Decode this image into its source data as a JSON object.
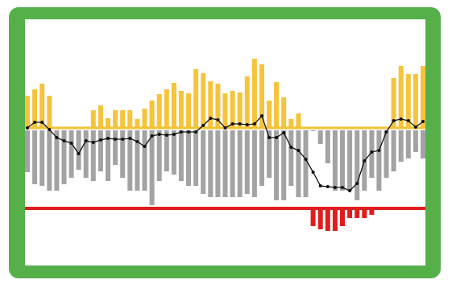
{
  "colors": {
    "frame": "#55b04a",
    "background": "#ffffff",
    "positive_bar": "#f6c33b",
    "negative_bar": "#a3a3a3",
    "below_threshold_bar": "#e01d1d",
    "baseline": "#f2c233",
    "threshold_line": "#e01d1d",
    "trend_line": "#111111"
  },
  "chart_data": {
    "type": "bar",
    "description_of_encoding": "",
    "baseline": 0,
    "threshold": -10,
    "ylim": [
      -14,
      9.5
    ],
    "grid": false,
    "legend": "none",
    "positive_values": [
      4,
      4.8,
      5.5,
      4,
      0,
      0,
      0,
      0,
      0,
      2.2,
      2.8,
      1.2,
      2.2,
      2.2,
      2.2,
      1.1,
      2.4,
      3.4,
      4.2,
      4.8,
      5.6,
      4.6,
      4.3,
      7.3,
      6.8,
      5.8,
      5.5,
      4.3,
      4.6,
      4.4,
      6.4,
      8.6,
      7.9,
      3.4,
      5.7,
      3.8,
      1.1,
      1.8,
      0,
      0,
      0,
      0,
      0,
      0,
      0,
      0,
      0,
      0,
      0,
      0,
      6.2,
      7.7,
      6.7,
      6.7,
      7.7
    ],
    "negative_values": [
      -5.5,
      -7,
      -7.2,
      -7.8,
      -7.8,
      -7,
      -6.2,
      -5.2,
      -6.2,
      -6.6,
      -5.4,
      -6.6,
      -4.6,
      -6.2,
      -7.8,
      -7.8,
      -7.8,
      -9.6,
      -6.6,
      -5.4,
      -5.8,
      -6.6,
      -7.2,
      -7.2,
      -8.2,
      -8.6,
      -8.6,
      -8.6,
      -8.6,
      -8.6,
      -8.2,
      -8.6,
      -7.2,
      -6.2,
      -9,
      -9,
      -7.2,
      -8.6,
      -8.6,
      -0.4,
      -2,
      -4.4,
      -7.8,
      -7.8,
      -7.8,
      -9,
      -7.8,
      -6.2,
      -7.8,
      -6.2,
      -5.4,
      -4.2,
      -3.8,
      -3,
      -3.8
    ],
    "below_threshold_values": [
      0,
      0,
      0,
      0,
      0,
      0,
      0,
      0,
      0,
      0,
      0,
      0,
      0,
      0,
      0,
      0,
      0,
      0,
      0,
      0,
      0,
      0,
      0,
      0,
      0,
      0,
      0,
      0,
      0,
      0,
      0,
      0,
      0,
      0,
      0,
      0,
      0,
      0,
      0,
      -12.2,
      -12.6,
      -12.8,
      -12.8,
      -12.2,
      -11.2,
      -11.2,
      -11.2,
      -10.8,
      0,
      0,
      0,
      0,
      0,
      0,
      0
    ],
    "trend_values": [
      0,
      0.7,
      0.7,
      -0.2,
      -1.2,
      -1.6,
      -1.9,
      -3.2,
      -1.6,
      -1.8,
      -1.5,
      -1.3,
      -1.4,
      -1.4,
      -1.3,
      -1.7,
      -2.3,
      -1,
      -0.8,
      -0.9,
      -0.8,
      -0.5,
      -0.5,
      -0.5,
      0.3,
      1.2,
      1,
      0,
      0.5,
      0.5,
      0.4,
      0.5,
      1.5,
      -1.2,
      -1.2,
      -0.6,
      -2.4,
      -2.8,
      -3.9,
      -5.5,
      -7.2,
      -7.3,
      -7.4,
      -7.4,
      -7.8,
      -6.9,
      -4.1,
      -3,
      -2.8,
      -0.5,
      0.9,
      1.1,
      0.9,
      0.1,
      0.8
    ],
    "title": "",
    "xlabel": "",
    "ylabel": ""
  }
}
